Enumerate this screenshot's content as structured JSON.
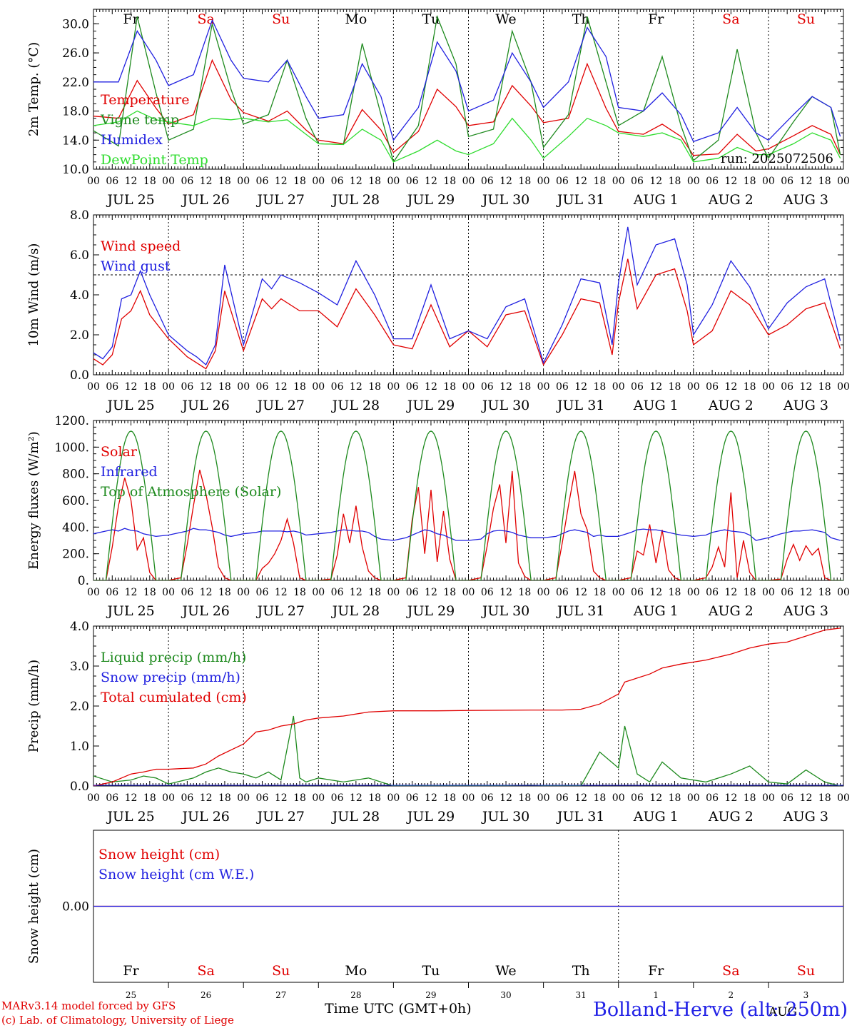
{
  "meteogram": {
    "station_title": "Bolland-Herve (alt: 250m)",
    "run_label": "run: 2025072506",
    "credits": [
      "MARv3.14 model forced by GFS",
      "(c) Lab. of Climatology, University of Liege"
    ],
    "x_axis_title": "Time UTC (GMT+0h)",
    "month_label_bottom": "AUG"
  },
  "chart_data": [
    {
      "type": "line",
      "ylabel": "2m Temp. (°C)",
      "ylim": [
        10,
        32
      ],
      "yticks": [
        "10.0",
        "14.0",
        "18.0",
        "22.0",
        "26.0",
        "30.0"
      ],
      "ytick_values": [
        10,
        14,
        18,
        22,
        26,
        30
      ],
      "weekday_labels": [
        "Fr",
        "Sa",
        "Su",
        "Mo",
        "Tu",
        "We",
        "Th",
        "Fr",
        "Sa",
        "Su"
      ],
      "weekday_colors": [
        "#000000",
        "#e00000",
        "#e00000",
        "#000000",
        "#000000",
        "#000000",
        "#000000",
        "#000000",
        "#e00000",
        "#e00000"
      ],
      "x_hours": [
        0,
        8,
        14,
        20,
        24,
        32,
        38,
        44,
        48,
        56,
        62,
        68,
        72,
        80,
        86,
        92,
        96,
        104,
        110,
        116,
        120,
        128,
        134,
        140,
        144,
        152,
        158,
        164,
        168,
        176,
        182,
        188,
        192,
        200,
        206,
        212,
        216,
        224,
        230,
        236,
        239
      ],
      "series": [
        {
          "name": "Temperature",
          "color": "#e00000",
          "values": [
            17.3,
            17.0,
            22.2,
            18.4,
            16.2,
            17.5,
            25.0,
            19.6,
            17.8,
            16.6,
            18.0,
            15.4,
            14.0,
            13.5,
            18.2,
            15.4,
            12.3,
            15.2,
            21.0,
            18.6,
            16.0,
            16.5,
            21.5,
            18.7,
            16.4,
            17.0,
            24.5,
            18.4,
            15.2,
            14.8,
            16.2,
            14.5,
            11.9,
            12.1,
            14.8,
            12.5,
            12.8,
            14.6,
            16.0,
            14.8,
            12.0
          ]
        },
        {
          "name": "Vigne temp",
          "color": "#1e8a1e",
          "values": [
            15.3,
            13.2,
            31.0,
            20.5,
            14.0,
            15.5,
            30.0,
            21.0,
            16.2,
            17.5,
            25.0,
            17.0,
            13.5,
            13.4,
            27.3,
            17.5,
            11.0,
            16.0,
            31.0,
            24.5,
            14.5,
            15.5,
            29.0,
            22.0,
            13.0,
            17.5,
            31.0,
            22.0,
            16.0,
            18.0,
            25.5,
            16.0,
            11.2,
            14.0,
            26.5,
            15.0,
            11.5,
            16.5,
            20.0,
            18.5,
            12.0
          ]
        },
        {
          "name": "Humidex",
          "color": "#2020e0",
          "values": [
            22.0,
            22.0,
            29.0,
            25.0,
            21.5,
            23.0,
            30.5,
            25.0,
            22.5,
            22.0,
            25.0,
            20.0,
            17.0,
            17.5,
            24.5,
            20.0,
            14.0,
            18.5,
            27.5,
            23.5,
            18.0,
            19.5,
            26.0,
            22.0,
            18.5,
            22.0,
            29.5,
            25.5,
            18.5,
            18.0,
            20.5,
            17.5,
            13.8,
            15.0,
            18.5,
            15.0,
            14.0,
            17.5,
            20.0,
            18.5,
            14.5
          ]
        },
        {
          "name": "DewPoint Temp",
          "color": "#2edc2e",
          "values": [
            16.0,
            16.5,
            18.0,
            16.8,
            16.5,
            16.0,
            17.0,
            16.8,
            17.0,
            16.5,
            16.8,
            14.8,
            13.5,
            13.4,
            15.5,
            14.0,
            11.0,
            12.5,
            14.0,
            12.5,
            12.0,
            13.5,
            17.0,
            14.0,
            11.5,
            14.5,
            17.0,
            16.0,
            15.0,
            14.5,
            15.0,
            14.0,
            11.0,
            11.5,
            13.0,
            12.0,
            12.0,
            13.5,
            15.0,
            14.0,
            11.5
          ]
        }
      ]
    },
    {
      "type": "line",
      "ylabel": "10m Wind (m/s)",
      "ylim": [
        0,
        8
      ],
      "yticks": [
        "0.0",
        "2.0",
        "4.0",
        "6.0",
        "8.0"
      ],
      "ytick_values": [
        0,
        2,
        4,
        6,
        8
      ],
      "reference_line": 5,
      "x_hours": [
        0,
        3,
        6,
        9,
        12,
        15,
        18,
        24,
        30,
        33,
        36,
        39,
        42,
        48,
        54,
        57,
        60,
        66,
        72,
        78,
        84,
        90,
        96,
        102,
        108,
        114,
        120,
        126,
        132,
        138,
        144,
        150,
        156,
        162,
        166,
        168,
        171,
        174,
        180,
        186,
        190,
        192,
        198,
        204,
        210,
        216,
        222,
        228,
        234,
        239
      ],
      "series": [
        {
          "name": "Wind speed",
          "color": "#e00000",
          "values": [
            0.8,
            0.5,
            1.0,
            2.8,
            3.2,
            4.2,
            3.0,
            1.8,
            0.9,
            0.6,
            0.3,
            1.2,
            4.2,
            1.2,
            3.8,
            3.3,
            3.8,
            3.2,
            3.2,
            2.4,
            4.3,
            3.0,
            1.5,
            1.3,
            3.5,
            1.4,
            2.2,
            1.4,
            3.0,
            3.2,
            0.5,
            2.0,
            3.8,
            3.6,
            1.0,
            3.6,
            5.8,
            3.3,
            5.0,
            5.3,
            3.2,
            1.5,
            2.2,
            4.2,
            3.5,
            2.0,
            2.5,
            3.3,
            3.6,
            1.3
          ]
        },
        {
          "name": "Wind gust",
          "color": "#2020e0",
          "values": [
            1.1,
            0.8,
            1.4,
            3.8,
            4.0,
            5.2,
            4.0,
            2.0,
            1.2,
            0.9,
            0.5,
            1.5,
            5.5,
            1.5,
            4.8,
            4.3,
            5.0,
            4.6,
            4.1,
            3.5,
            5.7,
            4.0,
            1.8,
            1.8,
            4.5,
            1.8,
            2.2,
            1.8,
            3.4,
            3.8,
            0.6,
            2.5,
            4.8,
            4.6,
            1.5,
            4.6,
            7.4,
            4.5,
            6.5,
            6.8,
            4.5,
            2.0,
            3.5,
            5.7,
            4.4,
            2.3,
            3.6,
            4.4,
            4.8,
            1.7
          ]
        }
      ]
    },
    {
      "type": "line",
      "ylabel": "Energy fluxes (W/m²)",
      "ylim": [
        0,
        1200
      ],
      "yticks": [
        "0.",
        "200.",
        "400.",
        "600.",
        "800.",
        "1000.",
        "1200."
      ],
      "ytick_values": [
        0,
        200,
        400,
        600,
        800,
        1000,
        1200
      ],
      "toa_peak": 1120,
      "toa_sunrise_hour": 4,
      "toa_sunset_hour": 20,
      "x_hours": [
        0,
        4,
        6,
        8,
        10,
        12,
        14,
        16,
        18,
        20,
        24,
        28,
        30,
        32,
        34,
        36,
        38,
        40,
        42,
        44,
        48,
        52,
        54,
        56,
        58,
        60,
        62,
        64,
        66,
        68,
        72,
        76,
        78,
        80,
        82,
        84,
        86,
        88,
        90,
        92,
        96,
        100,
        102,
        104,
        106,
        108,
        110,
        112,
        114,
        116,
        120,
        124,
        126,
        128,
        130,
        132,
        134,
        136,
        138,
        140,
        144,
        148,
        150,
        152,
        154,
        156,
        158,
        160,
        162,
        164,
        168,
        172,
        174,
        176,
        178,
        180,
        182,
        184,
        186,
        188,
        192,
        196,
        198,
        200,
        202,
        204,
        206,
        208,
        210,
        212,
        216,
        220,
        222,
        224,
        226,
        228,
        230,
        232,
        234,
        236,
        239
      ],
      "series": [
        {
          "name": "Solar",
          "color": "#e00000",
          "values": [
            0,
            0,
            250,
            560,
            770,
            600,
            230,
            320,
            60,
            0,
            0,
            20,
            270,
            560,
            830,
            650,
            400,
            100,
            20,
            0,
            0,
            0,
            90,
            130,
            200,
            300,
            460,
            280,
            20,
            0,
            0,
            10,
            190,
            500,
            280,
            560,
            250,
            70,
            20,
            0,
            0,
            20,
            460,
            700,
            200,
            680,
            140,
            520,
            160,
            0,
            0,
            20,
            260,
            540,
            720,
            280,
            820,
            130,
            30,
            0,
            0,
            20,
            280,
            560,
            820,
            500,
            380,
            70,
            20,
            0,
            0,
            20,
            220,
            190,
            420,
            130,
            380,
            80,
            20,
            0,
            0,
            20,
            100,
            250,
            100,
            660,
            20,
            300,
            60,
            0,
            0,
            10,
            160,
            270,
            150,
            260,
            190,
            240,
            20,
            0,
            0
          ]
        },
        {
          "name": "Infrared",
          "color": "#2020e0",
          "values": [
            350,
            370,
            380,
            370,
            390,
            375,
            370,
            350,
            340,
            330,
            340,
            360,
            370,
            390,
            380,
            380,
            370,
            360,
            340,
            330,
            350,
            360,
            370,
            370,
            370,
            370,
            365,
            370,
            360,
            340,
            350,
            360,
            370,
            380,
            375,
            370,
            370,
            360,
            330,
            310,
            300,
            320,
            340,
            360,
            380,
            370,
            350,
            340,
            320,
            300,
            300,
            310,
            350,
            370,
            375,
            370,
            360,
            340,
            330,
            320,
            320,
            330,
            350,
            370,
            380,
            370,
            360,
            330,
            340,
            330,
            330,
            360,
            380,
            385,
            380,
            380,
            370,
            360,
            350,
            340,
            330,
            340,
            360,
            370,
            380,
            370,
            365,
            360,
            340,
            300,
            320,
            350,
            360,
            370,
            370,
            375,
            380,
            370,
            360,
            320,
            300
          ]
        },
        {
          "name": "Top of Atmosphere (Solar)",
          "color": "#1e8a1e",
          "values": []
        }
      ]
    },
    {
      "type": "line",
      "ylabel": "Precip (mm/h)",
      "ylim": [
        0,
        4
      ],
      "yticks": [
        "0.0",
        "1.0",
        "2.0",
        "3.0",
        "4.0"
      ],
      "ytick_values": [
        0,
        1,
        2,
        3,
        4
      ],
      "x_hours": [
        0,
        6,
        12,
        16,
        20,
        24,
        32,
        36,
        40,
        44,
        48,
        52,
        56,
        60,
        64,
        66,
        68,
        72,
        80,
        88,
        96,
        110,
        120,
        140,
        150,
        156,
        162,
        168,
        170,
        174,
        178,
        182,
        188,
        196,
        204,
        210,
        216,
        222,
        228,
        234,
        239
      ],
      "series": [
        {
          "name": "Liquid precip (mm/h)",
          "color": "#1e8a1e",
          "values": [
            0.25,
            0.1,
            0.15,
            0.25,
            0.2,
            0.05,
            0.2,
            0.35,
            0.45,
            0.35,
            0.3,
            0.2,
            0.35,
            0.15,
            1.75,
            0.2,
            0.1,
            0.2,
            0.1,
            0.2,
            0.0,
            0.0,
            0.0,
            0.02,
            0.0,
            0.0,
            0.85,
            0.45,
            1.5,
            0.3,
            0.1,
            0.6,
            0.2,
            0.1,
            0.3,
            0.5,
            0.1,
            0.05,
            0.4,
            0.1,
            0.0
          ]
        },
        {
          "name": "Snow precip (mm/h)",
          "color": "#2020e0",
          "values": []
        },
        {
          "name": "Total cumulated (cm)",
          "color": "#e00000",
          "values": [
            0.0,
            0.1,
            0.3,
            0.35,
            0.42,
            0.42,
            0.45,
            0.55,
            0.75,
            0.9,
            1.05,
            1.35,
            1.4,
            1.5,
            1.55,
            1.6,
            1.65,
            1.7,
            1.75,
            1.85,
            1.88,
            1.88,
            1.89,
            1.9,
            1.9,
            1.92,
            2.05,
            2.3,
            2.6,
            2.7,
            2.8,
            2.95,
            3.05,
            3.15,
            3.3,
            3.45,
            3.55,
            3.6,
            3.75,
            3.9,
            3.95
          ]
        }
      ]
    },
    {
      "type": "line",
      "ylabel": "Snow height (cm)",
      "ylim": [
        -1,
        1
      ],
      "yticks": [
        "0.00"
      ],
      "ytick_values": [
        0
      ],
      "series": [
        {
          "name": "Snow height (cm)",
          "color": "#e00000",
          "values": [
            0,
            0
          ]
        },
        {
          "name": "Snow height (cm W.E.)",
          "color": "#2020e0",
          "values": [
            0,
            0
          ]
        }
      ],
      "weekday_labels": [
        "Fr",
        "Sa",
        "Su",
        "Mo",
        "Tu",
        "We",
        "Th",
        "Fr",
        "Sa",
        "Su"
      ],
      "weekday_colors": [
        "#000000",
        "#e00000",
        "#e00000",
        "#000000",
        "#000000",
        "#000000",
        "#000000",
        "#000000",
        "#e00000",
        "#e00000"
      ],
      "day_numbers": [
        "25",
        "26",
        "27",
        "28",
        "29",
        "30",
        "31",
        "1",
        "2",
        "3"
      ]
    }
  ],
  "x_axis": {
    "hour_ticks": [
      "00",
      "06",
      "12",
      "18"
    ],
    "final_tick": "00",
    "date_labels": [
      "JUL 25",
      "JUL 26",
      "JUL 27",
      "JUL 28",
      "JUL 29",
      "JUL 30",
      "JUL 31",
      "AUG  1",
      "AUG  2",
      "AUG  3"
    ]
  }
}
